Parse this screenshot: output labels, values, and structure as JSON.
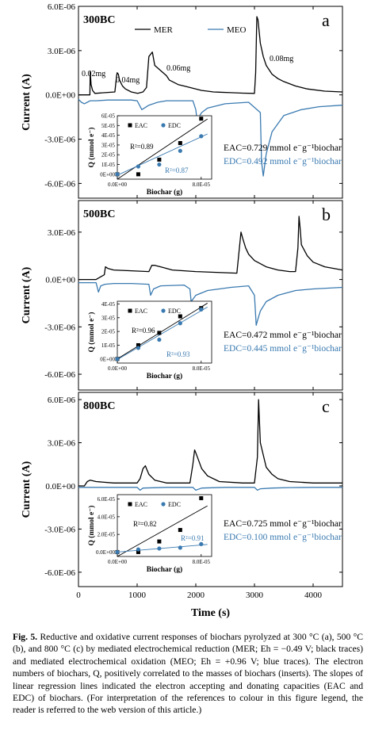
{
  "figure": {
    "y_axis_label": "Current (A)",
    "x_axis_label": "Time (s)",
    "legend": {
      "mer": "MER",
      "meo": "MEO"
    },
    "caption": {
      "label": "Fig. 5.",
      "text": "Reductive and oxidative current responses of biochars pyrolyzed at 300 °C (a), 500 °C (b), and 800 °C (c) by mediated electrochemical reduction (MER; Eh = −0.49 V; black traces) and mediated electrochemical oxidation (MEO; Eh = +0.96 V; blue traces). The electron numbers of biochars, Q, positively correlated to the masses of biochars (inserts). The slopes of linear regression lines indicated the electron accepting and donating capacities (EAC and EDC) of biochars. (For interpretation of the references to colour in this figure legend, the reader is referred to the web version of this article.)"
    },
    "colors": {
      "mer": "#000000",
      "meo": "#3a7ab0"
    }
  },
  "chart_data": [
    {
      "type": "line",
      "panel_letter": "a",
      "sample": "300BC",
      "xlim": [
        0,
        4500
      ],
      "ylim": [
        -7e-06,
        6e-06
      ],
      "yticks": [
        "6.0E-06",
        "3.0E-06",
        "0.0E+00",
        "-3.0E-06",
        "-6.0E-06"
      ],
      "ytick_values": [
        6e-06,
        3e-06,
        0,
        -3e-06,
        -6e-06
      ],
      "peak_labels": [
        "0.02mg",
        "0.04mg",
        "0.06mg",
        "0.08mg"
      ],
      "series": [
        {
          "name": "MER",
          "x": [
            0,
            150,
            195,
            200,
            215,
            240,
            280,
            620,
            650,
            660,
            680,
            700,
            750,
            800,
            900,
            1010,
            1100,
            1160,
            1200,
            1260,
            1300,
            1500,
            1550,
            1600,
            1700,
            1800,
            1900,
            2000,
            2100,
            2200,
            2300,
            2400,
            2600,
            2800,
            3000,
            3020,
            3040,
            3060,
            3080,
            3100,
            3150,
            3200,
            3300,
            3400,
            3500,
            3700,
            3900,
            4200,
            4500
          ],
          "y": [
            0,
            0,
            0,
            1.6e-06,
            7e-07,
            3e-07,
            1e-07,
            2e-07,
            1.3e-06,
            1.5e-06,
            1.4e-06,
            1e-06,
            6e-07,
            4e-07,
            2e-07,
            1e-07,
            2e-07,
            5e-07,
            2.6e-06,
            2.9e-06,
            2e-06,
            1.3e-06,
            1e-06,
            9e-07,
            7e-07,
            6e-07,
            5e-07,
            4e-07,
            3e-07,
            2.5e-07,
            2e-07,
            1.8e-07,
            1.5e-07,
            1.2e-07,
            1e-07,
            1.5e-06,
            5.3e-06,
            5.1e-06,
            4.3e-06,
            3.5e-06,
            2.6e-06,
            2e-06,
            1.4e-06,
            1.1e-06,
            9e-07,
            6e-07,
            4e-07,
            2.5e-07,
            2e-07
          ]
        },
        {
          "name": "MEO",
          "x": [
            0,
            50,
            100,
            150,
            200,
            300,
            500,
            900,
            1000,
            1080,
            1120,
            1200,
            1350,
            1500,
            1950,
            2000,
            2020,
            2100,
            2200,
            2500,
            2900,
            3100,
            3120,
            3150,
            3200,
            3300,
            3500,
            3800,
            4100,
            4500
          ],
          "y": [
            -3e-07,
            -5e-07,
            -6e-07,
            -5e-07,
            -4e-07,
            -4e-07,
            -3.5e-07,
            -3.5e-07,
            -4e-07,
            -1e-06,
            -9e-07,
            -7e-07,
            -5e-07,
            -4e-07,
            -4e-07,
            -1e-06,
            -1.7e-06,
            -1.2e-06,
            -9e-07,
            -6e-07,
            -5e-07,
            -1.2e-06,
            -4.5e-06,
            -5.5e-06,
            -4e-06,
            -2.5e-06,
            -1.4e-06,
            -1e-06,
            -8e-07,
            -7e-07
          ]
        }
      ],
      "inset": {
        "type": "scatter",
        "xlabel": "Biochar (g)",
        "ylabel": "Q (mmol e⁻)",
        "xlim": [
          0,
          9e-05
        ],
        "ylim": [
          -5e-06,
          6e-05
        ],
        "xtick_labels": [
          "0.0E+00",
          "8.0E-05"
        ],
        "ytick_labels": [
          "0E+00",
          "1E-05",
          "2E-05",
          "3E-05",
          "4E-05",
          "5E-05",
          "6E-05"
        ],
        "legend": [
          "EAC",
          "EDC"
        ],
        "r2_labels": [
          "R²=0.89",
          "R²=0.87"
        ],
        "series": [
          {
            "name": "EAC",
            "x": [
              0,
              2e-05,
              4e-05,
              6e-05,
              8e-05
            ],
            "y": [
              0,
              0,
              1.5e-05,
              3.2e-05,
              5.7e-05
            ]
          },
          {
            "name": "EDC",
            "x": [
              0,
              2e-05,
              4e-05,
              6e-05,
              8e-05
            ],
            "y": [
              0,
              8e-06,
              1e-05,
              2.4e-05,
              3.9e-05
            ]
          }
        ],
        "fits": [
          {
            "name": "EAC",
            "slope": 0.729,
            "intercept": -6e-06
          },
          {
            "name": "EDC",
            "slope": 0.492,
            "intercept": -1e-06
          }
        ]
      },
      "eac_text": "EAC=0.729 mmol e⁻g⁻¹biochar",
      "edc_text": "EDC=0.492 mmol e⁻g⁻¹biochar"
    },
    {
      "type": "line",
      "panel_letter": "b",
      "sample": "500BC",
      "xlim": [
        0,
        4500
      ],
      "ylim": [
        -7e-06,
        5e-06
      ],
      "yticks": [
        "3.0E-06",
        "0.0E+00",
        "-3.0E-06",
        "-6.0E-06"
      ],
      "ytick_values": [
        3e-06,
        0,
        -3e-06,
        -6e-06
      ],
      "series": [
        {
          "name": "MER",
          "x": [
            0,
            300,
            440,
            460,
            500,
            600,
            1200,
            1250,
            1300,
            1400,
            1500,
            1600,
            2000,
            2700,
            2770,
            2800,
            2850,
            2900,
            3000,
            3200,
            3400,
            3600,
            3700,
            3740,
            3760,
            3780,
            3800,
            3900,
            4000,
            4200,
            4500
          ],
          "y": [
            0,
            0,
            3e-07,
            8e-07,
            7e-07,
            6e-07,
            5e-07,
            9e-07,
            9e-07,
            8e-07,
            7e-07,
            6e-07,
            5e-07,
            4e-07,
            3e-06,
            2.6e-06,
            2e-06,
            1.6e-06,
            1.2e-06,
            8e-07,
            6e-07,
            5e-07,
            5e-07,
            2e-06,
            4e-06,
            3.2e-06,
            2.2e-06,
            1.5e-06,
            1.1e-06,
            8e-07,
            6e-07
          ]
        },
        {
          "name": "MEO",
          "x": [
            0,
            300,
            340,
            380,
            450,
            600,
            900,
            1200,
            1230,
            1280,
            1400,
            1800,
            1900,
            1920,
            2000,
            2200,
            2600,
            2900,
            3000,
            3030,
            3060,
            3100,
            3200,
            3400,
            3700,
            4000,
            4500
          ],
          "y": [
            -2e-07,
            -2e-07,
            -8e-07,
            -4e-07,
            -3e-07,
            -2.5e-07,
            -2.5e-07,
            -3e-07,
            -1e-06,
            -6e-07,
            -4e-07,
            -3.5e-07,
            -6e-07,
            -1.4e-06,
            -1e-06,
            -7e-07,
            -5e-07,
            -4e-07,
            -1e-06,
            -2.9e-06,
            -2.5e-06,
            -2e-06,
            -1.4e-06,
            -1e-06,
            -7e-07,
            -6e-07,
            -5e-07
          ]
        }
      ],
      "inset": {
        "type": "scatter",
        "xlabel": "Biochar (g)",
        "ylabel": "Q (mmol e⁻)",
        "xlim": [
          0,
          9e-05
        ],
        "ylim": [
          -3e-06,
          4.2e-05
        ],
        "xtick_labels": [
          "0.0E+00",
          "8.0E-05"
        ],
        "ytick_labels": [
          "0E+00",
          "1E-05",
          "2E-05",
          "3E-05",
          "4E-05"
        ],
        "legend": [
          "EAC",
          "EDC"
        ],
        "r2_labels": [
          "R²=0.96",
          "R²=0.93"
        ],
        "series": [
          {
            "name": "EAC",
            "x": [
              0,
              2e-05,
              4e-05,
              6e-05,
              8e-05
            ],
            "y": [
              0,
              1e-05,
              1.9e-05,
              3.1e-05,
              3.7e-05
            ]
          },
          {
            "name": "EDC",
            "x": [
              0,
              2e-05,
              4e-05,
              6e-05,
              8e-05
            ],
            "y": [
              0,
              8e-06,
              1.4e-05,
              2.6e-05,
              3.6e-05
            ]
          }
        ],
        "fits": [
          {
            "name": "EAC",
            "slope": 0.472,
            "intercept": 0
          },
          {
            "name": "EDC",
            "slope": 0.445,
            "intercept": -5e-07
          }
        ]
      },
      "eac_text": "EAC=0.472 mmol e⁻g⁻¹biochar",
      "edc_text": "EDC=0.445 mmol e⁻g⁻¹biochar"
    },
    {
      "type": "line",
      "panel_letter": "c",
      "sample": "800BC",
      "xlim": [
        0,
        4500
      ],
      "ylim": [
        -7e-06,
        6.5e-06
      ],
      "yticks": [
        "6.0E-06",
        "3.0E-06",
        "0.0E+00",
        "-3.0E-06",
        "-6.0E-06"
      ],
      "ytick_values": [
        6e-06,
        3e-06,
        0,
        -3e-06,
        -6e-06
      ],
      "series": [
        {
          "name": "MER",
          "x": [
            0,
            100,
            150,
            200,
            300,
            600,
            1000,
            1050,
            1100,
            1140,
            1160,
            1200,
            1300,
            1500,
            1900,
            1950,
            1980,
            2000,
            2100,
            2200,
            2400,
            2800,
            3000,
            3050,
            3070,
            3080,
            3100,
            3200,
            3300,
            3400,
            3600,
            4000,
            4500
          ],
          "y": [
            0,
            0,
            3e-07,
            4e-07,
            3e-07,
            2e-07,
            2e-07,
            5e-07,
            1.2e-06,
            1.4e-06,
            1.2e-06,
            8e-07,
            4e-07,
            2e-07,
            2e-07,
            1.5e-06,
            2.5e-06,
            2.3e-06,
            1.2e-06,
            7e-07,
            3e-07,
            2e-07,
            2e-07,
            2e-06,
            6e-06,
            5e-06,
            3e-06,
            1.3e-06,
            8e-07,
            5e-07,
            3e-07,
            2e-07,
            2e-07
          ]
        },
        {
          "name": "MEO",
          "x": [
            0,
            300,
            1000,
            1050,
            1100,
            1500,
            1950,
            2000,
            2100,
            2500,
            3000,
            3050,
            3100,
            3300,
            3600,
            4000,
            4500
          ],
          "y": [
            -1e-07,
            -1e-07,
            -1e-07,
            -3e-07,
            -1.5e-07,
            -1e-07,
            -1e-07,
            -3e-07,
            -1.5e-07,
            -1e-07,
            -1e-07,
            -3e-07,
            -2e-07,
            -1.5e-07,
            -1.2e-07,
            -1e-07,
            -1e-07
          ]
        }
      ],
      "inset": {
        "type": "scatter",
        "xlabel": "Biochar (g)",
        "ylabel": "Q (mmol e⁻)",
        "xlim": [
          0,
          9e-05
        ],
        "ylim": [
          -5e-06,
          6.5e-05
        ],
        "xtick_labels": [
          "0.0E+00",
          "8.0E-05"
        ],
        "ytick_labels": [
          "0.0E+00",
          "2.0E-05",
          "4.0E-05",
          "6.0E-05"
        ],
        "legend": [
          "EAC",
          "EDC"
        ],
        "r2_labels": [
          "R²=0.82",
          "R²=0.91"
        ],
        "series": [
          {
            "name": "EAC",
            "x": [
              0,
              2e-05,
              4e-05,
              6e-05,
              8e-05
            ],
            "y": [
              0,
              0,
              1.2e-05,
              2.5e-05,
              6.1e-05
            ]
          },
          {
            "name": "EDC",
            "x": [
              0,
              2e-05,
              4e-05,
              6e-05,
              8e-05
            ],
            "y": [
              0,
              3e-06,
              4e-06,
              5e-06,
              9e-06
            ]
          }
        ],
        "fits": [
          {
            "name": "EAC",
            "slope": 0.725,
            "intercept": -1e-05
          },
          {
            "name": "EDC",
            "slope": 0.1,
            "intercept": 0
          }
        ]
      },
      "eac_text": "EAC=0.725 mmol e⁻g⁻¹biochar",
      "edc_text": "EDC=0.100 mmol e⁻g⁻¹biochar"
    }
  ],
  "x_ticks": [
    "0",
    "1000",
    "2000",
    "3000",
    "4000"
  ],
  "x_tick_values": [
    0,
    1000,
    2000,
    3000,
    4000
  ]
}
